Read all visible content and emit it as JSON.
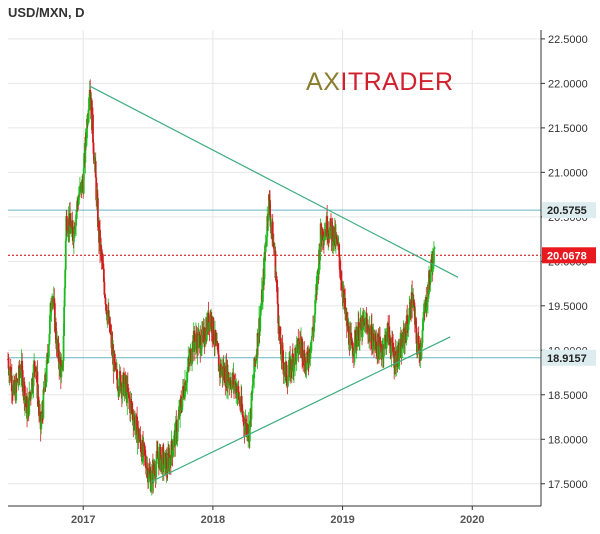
{
  "chart_data": {
    "type": "candlestick",
    "title": "USD/MXN, D",
    "logo": {
      "a": "A",
      "x": "X",
      "rest": "ITRADER"
    },
    "x_ticks": [
      "2017",
      "2018",
      "2019",
      "2020"
    ],
    "x_tick_values": [
      2017.0,
      2018.0,
      2019.0,
      2020.0
    ],
    "xlim": [
      2016.42,
      2020.53
    ],
    "ylim": [
      17.25,
      22.6
    ],
    "y_ticks": [
      "17.5000",
      "18.0000",
      "18.5000",
      "19.0000",
      "19.5000",
      "20.0000",
      "20.5000",
      "21.0000",
      "21.5000",
      "22.0000",
      "22.5000"
    ],
    "y_tick_values": [
      17.5,
      18.0,
      18.5,
      19.0,
      19.5,
      20.0,
      20.5,
      21.0,
      21.5,
      22.0,
      22.5
    ],
    "grid": true,
    "price_path": [
      [
        2016.42,
        18.9
      ],
      [
        2016.47,
        18.5
      ],
      [
        2016.52,
        18.8
      ],
      [
        2016.57,
        18.3
      ],
      [
        2016.63,
        18.9
      ],
      [
        2016.67,
        18.1
      ],
      [
        2016.72,
        18.8
      ],
      [
        2016.76,
        19.7
      ],
      [
        2016.8,
        19.0
      ],
      [
        2016.84,
        18.7
      ],
      [
        2016.87,
        20.5
      ],
      [
        2016.92,
        20.3
      ],
      [
        2016.96,
        20.7
      ],
      [
        2017.0,
        20.9
      ],
      [
        2017.03,
        21.6
      ],
      [
        2017.05,
        22.0
      ],
      [
        2017.08,
        21.3
      ],
      [
        2017.12,
        20.3
      ],
      [
        2017.18,
        19.5
      ],
      [
        2017.25,
        18.7
      ],
      [
        2017.32,
        18.6
      ],
      [
        2017.38,
        18.3
      ],
      [
        2017.45,
        17.9
      ],
      [
        2017.52,
        17.55
      ],
      [
        2017.58,
        17.8
      ],
      [
        2017.65,
        17.7
      ],
      [
        2017.72,
        18.1
      ],
      [
        2017.78,
        18.6
      ],
      [
        2017.85,
        19.1
      ],
      [
        2017.92,
        19.1
      ],
      [
        2017.98,
        19.4
      ],
      [
        2018.05,
        18.8
      ],
      [
        2018.12,
        18.7
      ],
      [
        2018.18,
        18.6
      ],
      [
        2018.24,
        18.2
      ],
      [
        2018.28,
        18.1
      ],
      [
        2018.32,
        18.8
      ],
      [
        2018.38,
        19.6
      ],
      [
        2018.43,
        20.7
      ],
      [
        2018.48,
        20.0
      ],
      [
        2018.52,
        19.0
      ],
      [
        2018.57,
        18.7
      ],
      [
        2018.62,
        18.9
      ],
      [
        2018.68,
        19.1
      ],
      [
        2018.72,
        18.8
      ],
      [
        2018.78,
        19.3
      ],
      [
        2018.83,
        20.3
      ],
      [
        2018.88,
        20.4
      ],
      [
        2018.93,
        20.3
      ],
      [
        2018.97,
        20.1
      ],
      [
        2019.02,
        19.4
      ],
      [
        2019.07,
        19.0
      ],
      [
        2019.12,
        19.2
      ],
      [
        2019.18,
        19.3
      ],
      [
        2019.24,
        19.1
      ],
      [
        2019.3,
        19.0
      ],
      [
        2019.35,
        19.2
      ],
      [
        2019.4,
        18.9
      ],
      [
        2019.45,
        19.0
      ],
      [
        2019.5,
        19.3
      ],
      [
        2019.54,
        19.6
      ],
      [
        2019.57,
        19.1
      ],
      [
        2019.6,
        19.0
      ],
      [
        2019.63,
        19.4
      ],
      [
        2019.66,
        19.7
      ],
      [
        2019.69,
        20.0
      ],
      [
        2019.71,
        20.07
      ]
    ],
    "lines": [
      {
        "name": "resistance",
        "color": "#3dad7f",
        "from": [
          2017.05,
          21.97
        ],
        "to": [
          2019.89,
          19.82
        ]
      },
      {
        "name": "support",
        "color": "#3dad7f",
        "from": [
          2017.52,
          17.52
        ],
        "to": [
          2019.83,
          19.15
        ]
      }
    ],
    "levels": [
      {
        "label": "20.5755",
        "value": 20.5755,
        "color": "#67b7c2",
        "badge_bg": "#dcecef",
        "badge_text": "#222222"
      },
      {
        "label": "18.9157",
        "value": 18.9157,
        "color": "#67b7c2",
        "badge_bg": "#dcecef",
        "badge_text": "#222222"
      },
      {
        "label": "20.0678",
        "value": 20.0678,
        "color": "#cc0000",
        "badge_bg": "#e8191f",
        "badge_text": "#ffffff",
        "dashed": true
      }
    ],
    "colors": {
      "up": "#1cba1c",
      "down": "#cf1d1d",
      "axis": "#333333",
      "grid": "#e6e6e6"
    }
  }
}
